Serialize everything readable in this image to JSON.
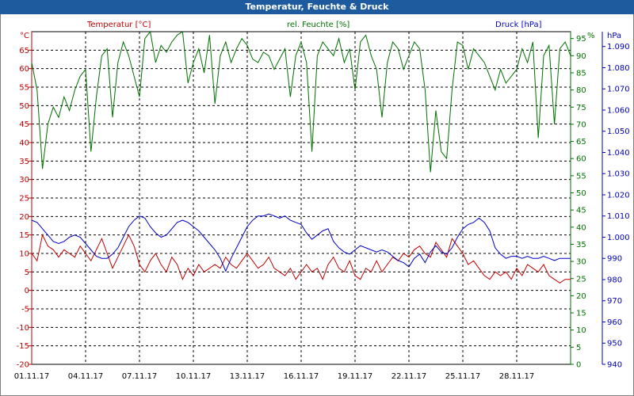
{
  "title": "Temperatur, Feuchte & Druck",
  "colors": {
    "temperature": "#c00000",
    "humidity": "#007000",
    "pressure": "#0000c0",
    "grid": "#000000",
    "title_bg": "#1e5b9e"
  },
  "chart_data": {
    "type": "line",
    "grid": true,
    "x_ticks": [
      "01.11.17",
      "04.11.17",
      "07.11.17",
      "10.11.17",
      "13.11.17",
      "16.11.17",
      "19.11.17",
      "22.11.17",
      "25.11.17",
      "28.11.17"
    ],
    "xlim": [
      "01.11.17",
      "01.12.17"
    ],
    "axes": {
      "temperature": {
        "label": "Temperatur [°C]",
        "unit": "°C",
        "ylim": [
          -20,
          70
        ],
        "ticks": [
          "65",
          "60",
          "55",
          "50",
          "45",
          "40",
          "35",
          "30",
          "25",
          "20",
          "15",
          "10",
          "5",
          "0",
          "-5",
          "-10",
          "-15",
          "-20"
        ]
      },
      "humidity": {
        "label": "rel. Feuchte [%]",
        "unit": "%",
        "ylim": [
          0,
          97
        ],
        "ticks": [
          "95",
          "90",
          "85",
          "80",
          "75",
          "70",
          "65",
          "60",
          "55",
          "50",
          "45",
          "40",
          "35",
          "30",
          "25",
          "20",
          "15",
          "10",
          "5",
          "0"
        ]
      },
      "pressure": {
        "label": "Druck [hPa]",
        "unit": "hPa",
        "ylim": [
          940,
          1097
        ],
        "ticks": [
          "1.090",
          "1.080",
          "1.070",
          "1.060",
          "1.050",
          "1.040",
          "1.030",
          "1.020",
          "1.010",
          "1.000",
          "990",
          "980",
          "970",
          "960",
          "950",
          "940"
        ]
      }
    },
    "series": [
      {
        "name": "Temperatur [°C]",
        "axis": "temperature",
        "x": [
          0,
          0.3,
          0.6,
          0.9,
          1.2,
          1.5,
          1.8,
          2.1,
          2.4,
          2.7,
          3.0,
          3.3,
          3.6,
          3.9,
          4.2,
          4.5,
          4.8,
          5.1,
          5.4,
          5.7,
          6.0,
          6.3,
          6.6,
          6.9,
          7.2,
          7.5,
          7.8,
          8.1,
          8.4,
          8.7,
          9.0,
          9.3,
          9.6,
          9.9,
          10.2,
          10.5,
          10.8,
          11.1,
          11.4,
          11.7,
          12.0,
          12.3,
          12.6,
          12.9,
          13.2,
          13.5,
          13.8,
          14.1,
          14.4,
          14.7,
          15.0,
          15.3,
          15.6,
          15.9,
          16.2,
          16.5,
          16.8,
          17.1,
          17.4,
          17.7,
          18.0,
          18.3,
          18.6,
          18.9,
          19.2,
          19.5,
          19.8,
          20.1,
          20.4,
          20.7,
          21.0,
          21.3,
          21.6,
          21.9,
          22.2,
          22.5,
          22.8,
          23.1,
          23.4,
          23.7,
          24.0,
          24.3,
          24.6,
          24.9,
          25.2,
          25.5,
          25.8,
          26.1,
          26.4,
          26.7,
          27.0,
          27.3,
          27.6,
          27.9,
          28.2,
          28.5,
          28.8,
          29.1,
          29.4,
          29.7,
          30.0
        ],
        "values": [
          10,
          8,
          15,
          12,
          11,
          9,
          11,
          10,
          9,
          12,
          10,
          8,
          11,
          14,
          10,
          6,
          9,
          12,
          15,
          12,
          7,
          5,
          8,
          10,
          7,
          5,
          9,
          7,
          3,
          6,
          4,
          7,
          5,
          6,
          7,
          6,
          9,
          7,
          6,
          8,
          10,
          8,
          6,
          7,
          9,
          6,
          5,
          4,
          6,
          3,
          5,
          7,
          5,
          6,
          3,
          7,
          9,
          6,
          5,
          8,
          4,
          3,
          6,
          5,
          8,
          5,
          7,
          9,
          8,
          10,
          9,
          11,
          12,
          10,
          9,
          13,
          11,
          9,
          14,
          12,
          10,
          7,
          8,
          6,
          4,
          3,
          5,
          4,
          5,
          3,
          6,
          4,
          7,
          6,
          5,
          7,
          4,
          3,
          2,
          3,
          3
        ]
      },
      {
        "name": "rel. Feuchte [%]",
        "axis": "humidity",
        "x": [
          0,
          0.3,
          0.6,
          0.9,
          1.2,
          1.5,
          1.8,
          2.1,
          2.4,
          2.7,
          3.0,
          3.3,
          3.6,
          3.9,
          4.2,
          4.5,
          4.8,
          5.1,
          5.4,
          5.7,
          6.0,
          6.3,
          6.6,
          6.9,
          7.2,
          7.5,
          7.8,
          8.1,
          8.4,
          8.7,
          9.0,
          9.3,
          9.6,
          9.9,
          10.2,
          10.5,
          10.8,
          11.1,
          11.4,
          11.7,
          12.0,
          12.3,
          12.6,
          12.9,
          13.2,
          13.5,
          13.8,
          14.1,
          14.4,
          14.7,
          15.0,
          15.3,
          15.6,
          15.9,
          16.2,
          16.5,
          16.8,
          17.1,
          17.4,
          17.7,
          18.0,
          18.3,
          18.6,
          18.9,
          19.2,
          19.5,
          19.8,
          20.1,
          20.4,
          20.7,
          21.0,
          21.3,
          21.6,
          21.9,
          22.2,
          22.5,
          22.8,
          23.1,
          23.4,
          23.7,
          24.0,
          24.3,
          24.6,
          24.9,
          25.2,
          25.5,
          25.8,
          26.1,
          26.4,
          26.7,
          27.0,
          27.3,
          27.6,
          27.9,
          28.2,
          28.5,
          28.8,
          29.1,
          29.4,
          29.7,
          30.0
        ],
        "values": [
          88,
          80,
          57,
          70,
          75,
          72,
          78,
          74,
          80,
          84,
          86,
          62,
          78,
          90,
          92,
          72,
          88,
          94,
          90,
          84,
          78,
          95,
          97,
          88,
          93,
          91,
          94,
          96,
          97,
          82,
          88,
          92,
          85,
          96,
          76,
          90,
          94,
          88,
          92,
          95,
          93,
          89,
          88,
          91,
          90,
          86,
          89,
          92,
          78,
          90,
          94,
          88,
          62,
          90,
          94,
          92,
          90,
          95,
          88,
          92,
          80,
          94,
          96,
          90,
          86,
          72,
          88,
          94,
          92,
          86,
          90,
          94,
          92,
          80,
          56,
          74,
          62,
          60,
          80,
          94,
          93,
          86,
          92,
          90,
          88,
          84,
          80,
          86,
          82,
          84,
          86,
          92,
          88,
          94,
          66,
          90,
          93,
          70,
          92,
          94,
          90
        ]
      },
      {
        "name": "Druck [hPa]",
        "axis": "pressure",
        "x": [
          0,
          0.3,
          0.6,
          0.9,
          1.2,
          1.5,
          1.8,
          2.1,
          2.4,
          2.7,
          3.0,
          3.3,
          3.6,
          3.9,
          4.2,
          4.5,
          4.8,
          5.1,
          5.4,
          5.7,
          6.0,
          6.3,
          6.6,
          6.9,
          7.2,
          7.5,
          7.8,
          8.1,
          8.4,
          8.7,
          9.0,
          9.3,
          9.6,
          9.9,
          10.2,
          10.5,
          10.8,
          11.1,
          11.4,
          11.7,
          12.0,
          12.3,
          12.6,
          12.9,
          13.2,
          13.5,
          13.8,
          14.1,
          14.4,
          14.7,
          15.0,
          15.3,
          15.6,
          15.9,
          16.2,
          16.5,
          16.8,
          17.1,
          17.4,
          17.7,
          18.0,
          18.3,
          18.6,
          18.9,
          19.2,
          19.5,
          19.8,
          20.1,
          20.4,
          20.7,
          21.0,
          21.3,
          21.6,
          21.9,
          22.2,
          22.5,
          22.8,
          23.1,
          23.4,
          23.7,
          24.0,
          24.3,
          24.6,
          24.9,
          25.2,
          25.5,
          25.8,
          26.1,
          26.4,
          26.7,
          27.0,
          27.3,
          27.6,
          27.9,
          28.2,
          28.5,
          28.8,
          29.1,
          29.4,
          29.7,
          30.0
        ],
        "values": [
          1008,
          1007,
          1004,
          1001,
          998,
          997,
          998,
          1000,
          1001,
          1000,
          997,
          994,
          991,
          990,
          990,
          992,
          995,
          1000,
          1005,
          1008,
          1010,
          1009,
          1005,
          1002,
          1000,
          1001,
          1004,
          1007,
          1008,
          1007,
          1005,
          1003,
          1000,
          997,
          994,
          990,
          984,
          990,
          995,
          1000,
          1005,
          1008,
          1010,
          1010,
          1011,
          1010,
          1009,
          1010,
          1008,
          1007,
          1006,
          1002,
          999,
          1001,
          1003,
          1004,
          998,
          995,
          993,
          992,
          994,
          996,
          995,
          994,
          993,
          994,
          993,
          991,
          989,
          988,
          986,
          990,
          992,
          988,
          993,
          996,
          993,
          992,
          995,
          1000,
          1004,
          1006,
          1007,
          1009,
          1007,
          1003,
          995,
          992,
          990,
          991,
          991,
          990,
          991,
          990,
          990,
          991,
          990,
          989,
          990,
          990,
          990
        ]
      }
    ]
  }
}
